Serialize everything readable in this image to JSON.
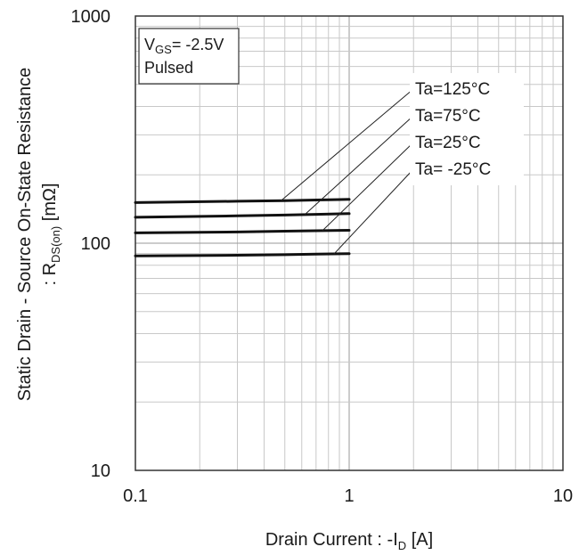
{
  "chart_data": {
    "type": "line",
    "xlabel": {
      "main": "Drain Current : -I",
      "sub": "D",
      "unit": " [A]"
    },
    "ylabel": {
      "line1": "Static Drain - Source On-State Resistance",
      "line2_pre": ": R",
      "line2_sub": "DS(on)",
      "line2_post": " [mΩ]"
    },
    "x_scale": "log",
    "y_scale": "log",
    "xlim": [
      0.1,
      10
    ],
    "ylim": [
      10,
      1000
    ],
    "x_ticks": [
      {
        "value": 0.1,
        "label": "0.1"
      },
      {
        "value": 1,
        "label": "1"
      },
      {
        "value": 10,
        "label": "10"
      }
    ],
    "y_ticks": [
      {
        "value": 10,
        "label": "10"
      },
      {
        "value": 100,
        "label": "100"
      },
      {
        "value": 1000,
        "label": "1000"
      }
    ],
    "grid": true,
    "conditions": {
      "vgs_pre": "V",
      "vgs_sub": "GS",
      "vgs_post": "= -2.5V",
      "mode": "Pulsed"
    },
    "series": [
      {
        "name": "Ta=125°C",
        "x": [
          0.1,
          0.3,
          0.5,
          0.7,
          1.0
        ],
        "y": [
          151,
          153,
          154,
          155,
          156
        ]
      },
      {
        "name": "Ta=75°C",
        "x": [
          0.1,
          0.3,
          0.5,
          0.7,
          1.0
        ],
        "y": [
          130,
          132,
          133,
          134,
          135
        ]
      },
      {
        "name": "Ta=25°C",
        "x": [
          0.1,
          0.3,
          0.5,
          0.7,
          1.0
        ],
        "y": [
          111,
          112,
          113,
          113.5,
          114
        ]
      },
      {
        "name": "Ta= -25°C",
        "x": [
          0.1,
          0.3,
          0.5,
          0.7,
          1.0
        ],
        "y": [
          88,
          88.5,
          89,
          89.5,
          90
        ]
      }
    ],
    "legend_placement": "right, with leader lines to curves",
    "colors": {
      "line": "#111111",
      "grid": "#c8c8c8",
      "frame": "#333333"
    }
  }
}
